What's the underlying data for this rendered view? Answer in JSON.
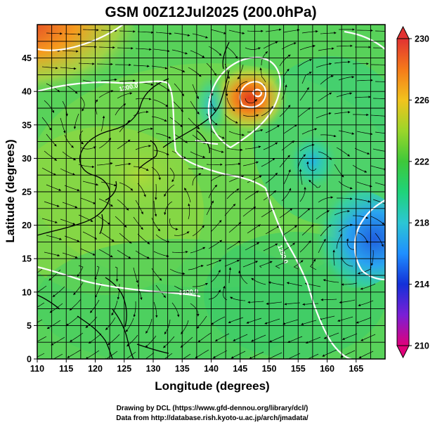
{
  "title": "GSM 00Z12Jul2025 (200.0hPa)",
  "x_axis": {
    "label": "Longitude (degrees)",
    "ticks": [
      "110",
      "115",
      "120",
      "125",
      "130",
      "135",
      "140",
      "145",
      "150",
      "155",
      "160",
      "165"
    ],
    "range": [
      110,
      170
    ]
  },
  "y_axis": {
    "label": "Latitude  (degrees)",
    "ticks": [
      "0",
      "5",
      "10",
      "15",
      "20",
      "25",
      "30",
      "35",
      "40",
      "45"
    ],
    "range": [
      0,
      50
    ]
  },
  "colorbar": {
    "ticks": [
      "210",
      "214",
      "218",
      "222",
      "226",
      "230"
    ],
    "range": [
      210,
      230
    ],
    "colors": [
      "#e0007a",
      "#7a1fd6",
      "#1330d8",
      "#1f8fff",
      "#2cc6d4",
      "#1fd37a",
      "#3ec83a",
      "#9bd62a",
      "#f2c31d",
      "#f57a1a",
      "#e23232"
    ]
  },
  "contour_labels": [
    "1200.0",
    "1200.0",
    "1250.0"
  ],
  "credits": [
    "Drawing by DCL (https://www.gfd-dennou.org/library/dcl/)",
    "Data from http://database.rish.kyoto-u.ac.jp/arch/jmadata/"
  ]
}
